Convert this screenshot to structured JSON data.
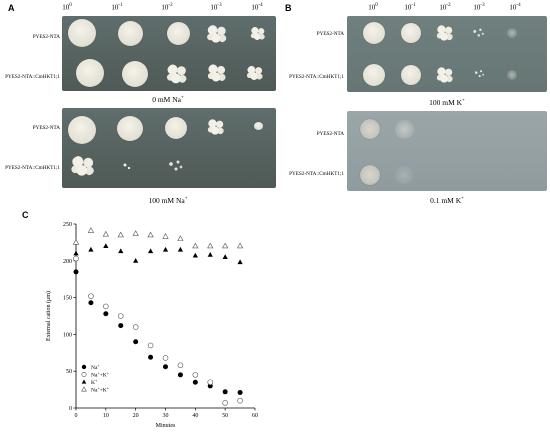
{
  "panelA": {
    "letter": "A",
    "dilutions": [
      "10",
      "10",
      "10",
      "10",
      "10"
    ],
    "exponents": [
      "0",
      "-1",
      "-2",
      "-3",
      "-4"
    ],
    "strains": [
      "PYES2-NTA",
      "PYES2-NTA::CmHKT1;1"
    ],
    "condition_top": "0 mM Na",
    "condition_top_sup": "+",
    "condition_bottom": "100 mM Na",
    "condition_bottom_sup": "+"
  },
  "panelB": {
    "letter": "B",
    "dilutions": [
      "10",
      "10",
      "10",
      "10",
      "10"
    ],
    "exponents": [
      "0",
      "-1",
      "-2",
      "-3",
      "-4"
    ],
    "strains": [
      "PYES2-NTA",
      "PYES2-NTA::CmHKT1;1"
    ],
    "condition_top": "100 mM K",
    "condition_top_sup": "+",
    "condition_bottom": "0.1 mM K",
    "condition_bottom_sup": "+"
  },
  "panelC": {
    "letter": "C",
    "chart_data": {
      "type": "scatter",
      "xlabel": "Minutes",
      "ylabel": "External cation (μm)",
      "xlim": [
        0,
        60
      ],
      "ylim": [
        0,
        250
      ],
      "xticks": [
        "0",
        "10",
        "20",
        "30",
        "40",
        "50",
        "60"
      ],
      "yticks": [
        "0",
        "50",
        "100",
        "150",
        "200",
        "250"
      ],
      "grid": false,
      "legend_position": "bottom-left",
      "series": [
        {
          "name": "Na+",
          "marker": "filled-circle",
          "x": [
            0,
            5,
            10,
            15,
            20,
            25,
            30,
            35,
            40,
            45,
            50,
            55
          ],
          "y": [
            185,
            143,
            128,
            112,
            90,
            69,
            56,
            45,
            35,
            30,
            22,
            21
          ]
        },
        {
          "name": "Na++K+",
          "marker": "open-circle",
          "x": [
            0,
            5,
            10,
            15,
            20,
            25,
            30,
            35,
            40,
            45,
            50,
            55
          ],
          "y": [
            203,
            152,
            138,
            125,
            110,
            85,
            68,
            58,
            45,
            35,
            7,
            10
          ]
        },
        {
          "name": "K+",
          "marker": "filled-triangle",
          "x": [
            0,
            5,
            10,
            15,
            20,
            25,
            30,
            35,
            40,
            45,
            50,
            55
          ],
          "y": [
            210,
            215,
            220,
            213,
            200,
            213,
            215,
            215,
            207,
            208,
            205,
            198
          ]
        },
        {
          "name": "Na++K+",
          "marker": "open-triangle",
          "x": [
            0,
            5,
            10,
            15,
            20,
            25,
            30,
            35,
            40,
            45,
            50,
            55
          ],
          "y": [
            225,
            241,
            236,
            235,
            237,
            235,
            233,
            230,
            220,
            220,
            220,
            220
          ]
        }
      ],
      "legend": [
        {
          "label": "Na",
          "sup": "+"
        },
        {
          "label": "Na",
          "sup": "+",
          "label2": "+K",
          "sup2": "+"
        },
        {
          "label": "K",
          "sup": "+"
        },
        {
          "label": "Na",
          "sup": "+",
          "label2": "+K",
          "sup2": "+"
        }
      ]
    }
  }
}
